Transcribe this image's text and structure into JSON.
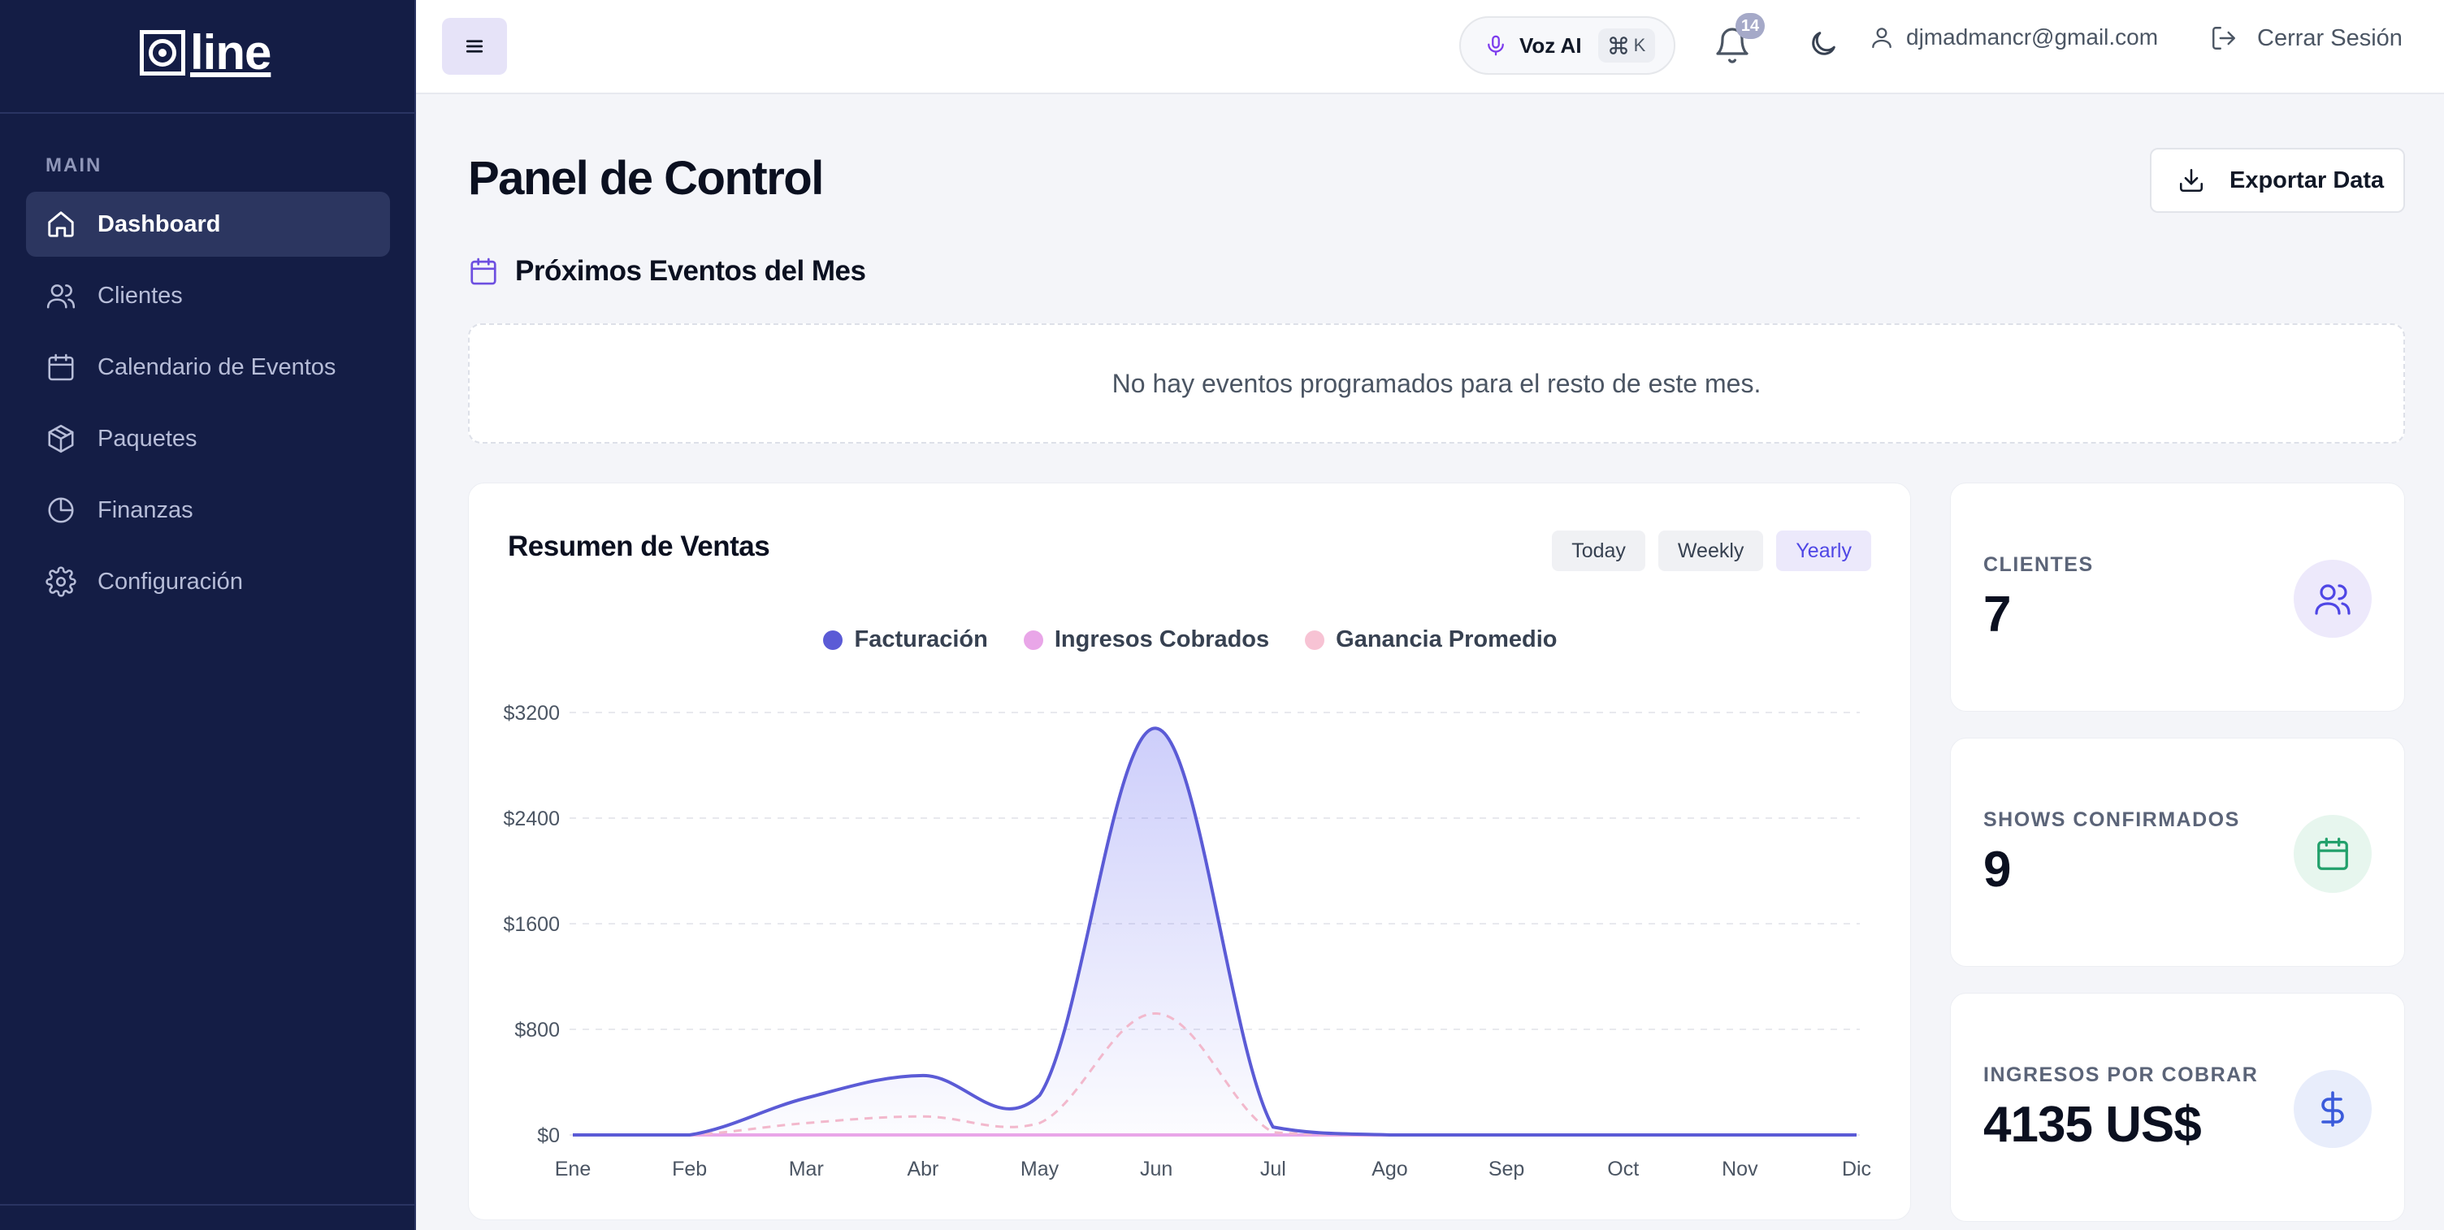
{
  "sidebar": {
    "logo_text": "line",
    "section_label": "MAIN",
    "items": [
      {
        "label": "Dashboard",
        "icon": "home-icon",
        "active": true
      },
      {
        "label": "Clientes",
        "icon": "users-icon"
      },
      {
        "label": "Calendario de Eventos",
        "icon": "calendar-icon"
      },
      {
        "label": "Paquetes",
        "icon": "package-icon"
      },
      {
        "label": "Finanzas",
        "icon": "pie-chart-icon"
      },
      {
        "label": "Configuración",
        "icon": "gear-icon"
      }
    ]
  },
  "topbar": {
    "voice_label": "Voz AI",
    "shortcut": "K",
    "notification_count": "14",
    "user_email": "djmadmancr@gmail.com",
    "logout_label": "Cerrar Sesión"
  },
  "main": {
    "title": "Panel de Control",
    "export_label": "Exportar Data",
    "events_title": "Próximos Eventos del Mes",
    "events_empty": "No hay eventos programados para el resto de este mes."
  },
  "sales": {
    "title": "Resumen de Ventas",
    "tabs": [
      "Today",
      "Weekly",
      "Yearly"
    ],
    "active_tab": "Yearly"
  },
  "stats": [
    {
      "label": "CLIENTES",
      "value": "7",
      "icon": "users-icon",
      "bg": "#ede9fb",
      "fg": "#4f46e5"
    },
    {
      "label": "SHOWS CONFIRMADOS",
      "value": "9",
      "icon": "calendar-icon",
      "bg": "#e7f6ee",
      "fg": "#22a06b"
    },
    {
      "label": "INGRESOS POR COBRAR",
      "value": "4135 US$",
      "icon": "dollar-icon",
      "bg": "#e8edfb",
      "fg": "#3b5bdb"
    }
  ],
  "colors": {
    "accent": "#4f46e5",
    "sidebar_bg": "#141d45"
  },
  "chart_data": {
    "type": "area",
    "categories": [
      "Ene",
      "Feb",
      "Mar",
      "Abr",
      "May",
      "Jun",
      "Jul",
      "Ago",
      "Sep",
      "Oct",
      "Nov",
      "Dic"
    ],
    "y_ticks": [
      "$0",
      "$800",
      "$1600",
      "$2400",
      "$3200"
    ],
    "ylim": [
      0,
      3200
    ],
    "grid": true,
    "legend_position": "top-center",
    "series": [
      {
        "name": "Facturación",
        "color": "#5b5bd6",
        "style": "solid",
        "fill": true,
        "values": [
          0,
          0,
          280,
          450,
          300,
          3080,
          60,
          0,
          0,
          0,
          0,
          0
        ]
      },
      {
        "name": "Ingresos Cobrados",
        "color": "#e9a6e8",
        "style": "solid",
        "fill": false,
        "values": [
          0,
          0,
          0,
          0,
          0,
          0,
          0,
          0,
          0,
          0,
          0,
          0
        ]
      },
      {
        "name": "Ganancia Promedio",
        "color": "#f2b8cc",
        "style": "dashed",
        "fill": false,
        "values": [
          0,
          0,
          90,
          140,
          90,
          920,
          20,
          0,
          0,
          0,
          0,
          0
        ]
      }
    ]
  }
}
